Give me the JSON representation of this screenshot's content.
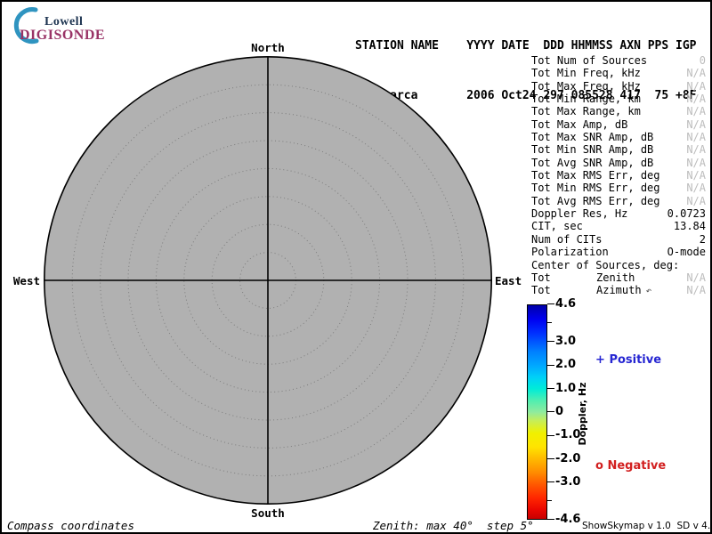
{
  "app": {
    "name": "ShowSkymap",
    "background": "#ffffff",
    "border_color": "#000000"
  },
  "logo": {
    "line1": "Lowell",
    "line2": "DIGISONDE",
    "line1_color": "#1c3350",
    "line2_color": "#993366",
    "arc_color": "#2f94c0"
  },
  "header": {
    "line1": "STATION NAME    YYYY DATE  DDD HHMMSS AXN PPS IGP",
    "line2": "Jicamarca       2006 Oct24 297 085528 417  75 +8F",
    "station_name": "Jicamarca",
    "year": "2006",
    "date": "Oct24",
    "day_of_year": "297",
    "time_hhmmss": "085528",
    "axn": "417",
    "pps": "75",
    "igp": "+8F"
  },
  "skymap": {
    "labels": {
      "north": "North",
      "south": "South",
      "east": "East",
      "west": "West"
    },
    "fill_color": "#b1b1b1",
    "ring_color": "#7d7d7d",
    "outline_color": "#000000",
    "max_zenith_deg": 40,
    "step_deg": 5,
    "num_sources_plotted": 0
  },
  "stats": {
    "muted_color": "#bcbcbc",
    "rows": [
      {
        "label": "Tot Num of Sources",
        "value": "0",
        "muted": true
      },
      {
        "label": "Tot Min Freq, kHz",
        "value": "N/A",
        "muted": true
      },
      {
        "label": "Tot Max Freq, kHz",
        "value": "N/A",
        "muted": true
      },
      {
        "label": "Tot Min Range, km",
        "value": "N/A",
        "muted": true
      },
      {
        "label": "Tot Max Range, km",
        "value": "N/A",
        "muted": true
      },
      {
        "label": "Tot Max Amp, dB",
        "value": "N/A",
        "muted": true
      },
      {
        "label": "Tot Max SNR Amp, dB",
        "value": "N/A",
        "muted": true
      },
      {
        "label": "Tot Min SNR Amp, dB",
        "value": "N/A",
        "muted": true
      },
      {
        "label": "Tot Avg SNR Amp, dB",
        "value": "N/A",
        "muted": true
      },
      {
        "label": "Tot Max RMS Err, deg",
        "value": "N/A",
        "muted": true
      },
      {
        "label": "Tot Min RMS Err, deg",
        "value": "N/A",
        "muted": true
      },
      {
        "label": "Tot Avg RMS Err, deg",
        "value": "N/A",
        "muted": true
      },
      {
        "label": "Doppler Res, Hz",
        "value": "0.0723",
        "muted": false
      },
      {
        "label": "CIT, sec",
        "value": "13.84",
        "muted": false
      },
      {
        "label": "Num of CITs",
        "value": "2",
        "muted": false
      },
      {
        "label": "Polarization",
        "value": "O-mode",
        "muted": false
      },
      {
        "label": "Center of Sources, deg:",
        "value": "",
        "muted": false
      },
      {
        "label": "Tot",
        "mid": "Zenith",
        "value": "N/A",
        "muted": true
      },
      {
        "label": "Tot",
        "mid": "Azimuth",
        "cursor": "↶",
        "value": "N/A",
        "muted": true
      }
    ]
  },
  "colorbar": {
    "axis_label": "Doppler, Hz",
    "max": 4.6,
    "min": -4.6,
    "major_ticks": [
      4.6,
      3.0,
      2.0,
      1.0,
      0,
      -1.0,
      -2.0,
      -3.0,
      -4.6
    ],
    "tick_labels": [
      "4.6",
      "3.0",
      "2.0",
      "1.0",
      "0",
      "-1.0",
      "-2.0",
      "-3.0",
      "-4.6"
    ],
    "minor_ticks": [
      3.8,
      -3.8
    ],
    "gradient": [
      {
        "value": 4.6,
        "color": "#0000a8"
      },
      {
        "value": 4.0,
        "color": "#0000f0"
      },
      {
        "value": 3.4,
        "color": "#0030ff"
      },
      {
        "value": 2.6,
        "color": "#0080ff"
      },
      {
        "value": 2.0,
        "color": "#00a8ff"
      },
      {
        "value": 1.5,
        "color": "#00d0f8"
      },
      {
        "value": 1.0,
        "color": "#00ecd8"
      },
      {
        "value": 0.5,
        "color": "#50eeb0"
      },
      {
        "value": 0.0,
        "color": "#8feb9e"
      },
      {
        "value": -0.4,
        "color": "#c8ee55"
      },
      {
        "value": -0.9,
        "color": "#f0f000"
      },
      {
        "value": -1.5,
        "color": "#ffe400"
      },
      {
        "value": -2.0,
        "color": "#ffbb00"
      },
      {
        "value": -2.6,
        "color": "#ff8c00"
      },
      {
        "value": -3.1,
        "color": "#ff5a00"
      },
      {
        "value": -3.7,
        "color": "#ff2600"
      },
      {
        "value": -4.2,
        "color": "#ea0600"
      },
      {
        "value": -4.6,
        "color": "#c80000"
      }
    ]
  },
  "legend": {
    "positive": {
      "symbol": "+",
      "label": "Positive",
      "color": "#2626d2"
    },
    "negative": {
      "symbol": "o",
      "label": "Negative",
      "color": "#d22020"
    }
  },
  "footer": {
    "left": "Compass coordinates",
    "center": "Zenith: max 40°  step 5°",
    "right": "ShowSkymap v 1.0  SD v 4.2"
  }
}
